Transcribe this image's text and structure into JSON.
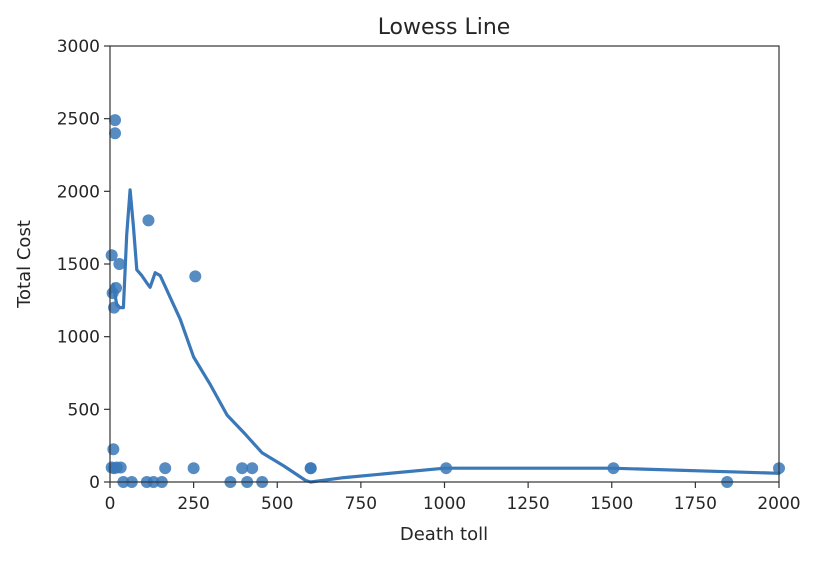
{
  "chart_data": {
    "type": "scatter",
    "title": "Lowess Line",
    "xlabel": "Death toll",
    "ylabel": "Total Cost",
    "xlim": [
      0,
      2000
    ],
    "ylim": [
      0,
      3000
    ],
    "xticks": [
      0,
      250,
      500,
      750,
      1000,
      1250,
      1500,
      1750,
      2000
    ],
    "yticks": [
      0,
      500,
      1000,
      1500,
      2000,
      2500,
      3000
    ],
    "grid": false,
    "color": "#3a78b8",
    "series": [
      {
        "kind": "scatter",
        "points": [
          [
            15,
            2490
          ],
          [
            15,
            2400
          ],
          [
            115,
            1800
          ],
          [
            255,
            1415
          ],
          [
            5,
            1560
          ],
          [
            28,
            1500
          ],
          [
            18,
            1335
          ],
          [
            8,
            1300
          ],
          [
            12,
            1200
          ],
          [
            10,
            225
          ],
          [
            5,
            100
          ],
          [
            12,
            95
          ],
          [
            20,
            100
          ],
          [
            32,
            100
          ],
          [
            40,
            0
          ],
          [
            65,
            0
          ],
          [
            110,
            0
          ],
          [
            130,
            0
          ],
          [
            155,
            0
          ],
          [
            165,
            95
          ],
          [
            250,
            95
          ],
          [
            395,
            95
          ],
          [
            425,
            95
          ],
          [
            360,
            0
          ],
          [
            410,
            0
          ],
          [
            455,
            0
          ],
          [
            600,
            95
          ],
          [
            600,
            95
          ],
          [
            1005,
            95
          ],
          [
            1505,
            95
          ],
          [
            1845,
            0
          ],
          [
            2000,
            95
          ]
        ]
      },
      {
        "kind": "line",
        "points": [
          [
            0,
            1300
          ],
          [
            10,
            1360
          ],
          [
            20,
            1220
          ],
          [
            30,
            1200
          ],
          [
            40,
            1200
          ],
          [
            50,
            1700
          ],
          [
            60,
            2010
          ],
          [
            70,
            1760
          ],
          [
            80,
            1460
          ],
          [
            95,
            1420
          ],
          [
            110,
            1370
          ],
          [
            120,
            1340
          ],
          [
            135,
            1440
          ],
          [
            150,
            1420
          ],
          [
            180,
            1270
          ],
          [
            210,
            1120
          ],
          [
            250,
            860
          ],
          [
            300,
            670
          ],
          [
            350,
            460
          ],
          [
            400,
            340
          ],
          [
            455,
            200
          ],
          [
            520,
            110
          ],
          [
            585,
            10
          ],
          [
            600,
            0
          ],
          [
            700,
            30
          ],
          [
            1000,
            95
          ],
          [
            1500,
            95
          ],
          [
            2000,
            60
          ]
        ]
      }
    ]
  }
}
